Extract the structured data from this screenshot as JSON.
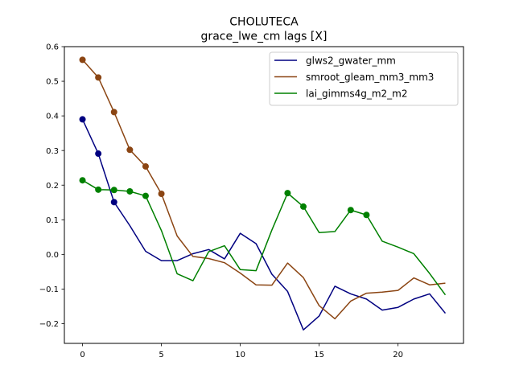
{
  "chart_data": {
    "type": "line",
    "title": "CHOLUTECA",
    "subtitle": "grace_lwe_cm lags [X]",
    "xlim": [
      -1.15,
      24.15
    ],
    "ylim": [
      -0.257,
      0.6
    ],
    "xticks": [
      0,
      5,
      10,
      15,
      20
    ],
    "yticks": [
      -0.2,
      -0.1,
      0.0,
      0.1,
      0.2,
      0.3,
      0.4,
      0.5,
      0.6
    ],
    "xtick_labels": [
      "0",
      "5",
      "10",
      "15",
      "20"
    ],
    "ytick_labels": [
      "−0.2",
      "−0.1",
      "0.0",
      "0.1",
      "0.2",
      "0.3",
      "0.4",
      "0.5",
      "0.6"
    ],
    "grid": false,
    "legend_position": "top-right",
    "series": [
      {
        "name": "glws2_gwater_mm",
        "color": "#000080",
        "x": [
          0,
          1,
          2,
          3,
          4,
          5,
          6,
          7,
          8,
          9,
          10,
          11,
          12,
          13,
          14,
          15,
          16,
          17,
          18,
          19,
          20,
          21,
          22,
          23
        ],
        "values": [
          0.39,
          0.291,
          0.151,
          0.083,
          0.009,
          -0.018,
          -0.018,
          0.002,
          0.014,
          -0.013,
          0.061,
          0.031,
          -0.057,
          -0.107,
          -0.218,
          -0.178,
          -0.092,
          -0.114,
          -0.129,
          -0.161,
          -0.153,
          -0.129,
          -0.114,
          -0.17
        ],
        "marker_x": [
          0,
          1,
          2
        ]
      },
      {
        "name": "smroot_gleam_mm3_mm3",
        "color": "#8B4513",
        "x": [
          0,
          1,
          2,
          3,
          4,
          5,
          6,
          7,
          8,
          9,
          10,
          11,
          12,
          13,
          14,
          15,
          16,
          17,
          18,
          19,
          20,
          21,
          22,
          23
        ],
        "values": [
          0.562,
          0.511,
          0.411,
          0.302,
          0.254,
          0.175,
          0.053,
          -0.006,
          -0.012,
          -0.024,
          -0.054,
          -0.088,
          -0.089,
          -0.025,
          -0.067,
          -0.148,
          -0.186,
          -0.135,
          -0.112,
          -0.109,
          -0.104,
          -0.068,
          -0.088,
          -0.083
        ],
        "marker_x": [
          0,
          1,
          2,
          3,
          4,
          5
        ]
      },
      {
        "name": "lai_gimms4g_m2_m2",
        "color": "#008000",
        "x": [
          0,
          1,
          2,
          3,
          4,
          5,
          6,
          7,
          8,
          9,
          10,
          11,
          12,
          13,
          14,
          15,
          16,
          17,
          18,
          19,
          20,
          21,
          22,
          23
        ],
        "values": [
          0.214,
          0.187,
          0.186,
          0.182,
          0.169,
          0.069,
          -0.056,
          -0.076,
          0.008,
          0.025,
          -0.044,
          -0.047,
          0.07,
          0.177,
          0.138,
          0.063,
          0.066,
          0.128,
          0.114,
          0.038,
          0.021,
          0.002,
          -0.055,
          -0.117
        ],
        "marker_x": [
          0,
          1,
          2,
          3,
          4,
          13,
          14,
          17,
          18
        ]
      }
    ]
  }
}
